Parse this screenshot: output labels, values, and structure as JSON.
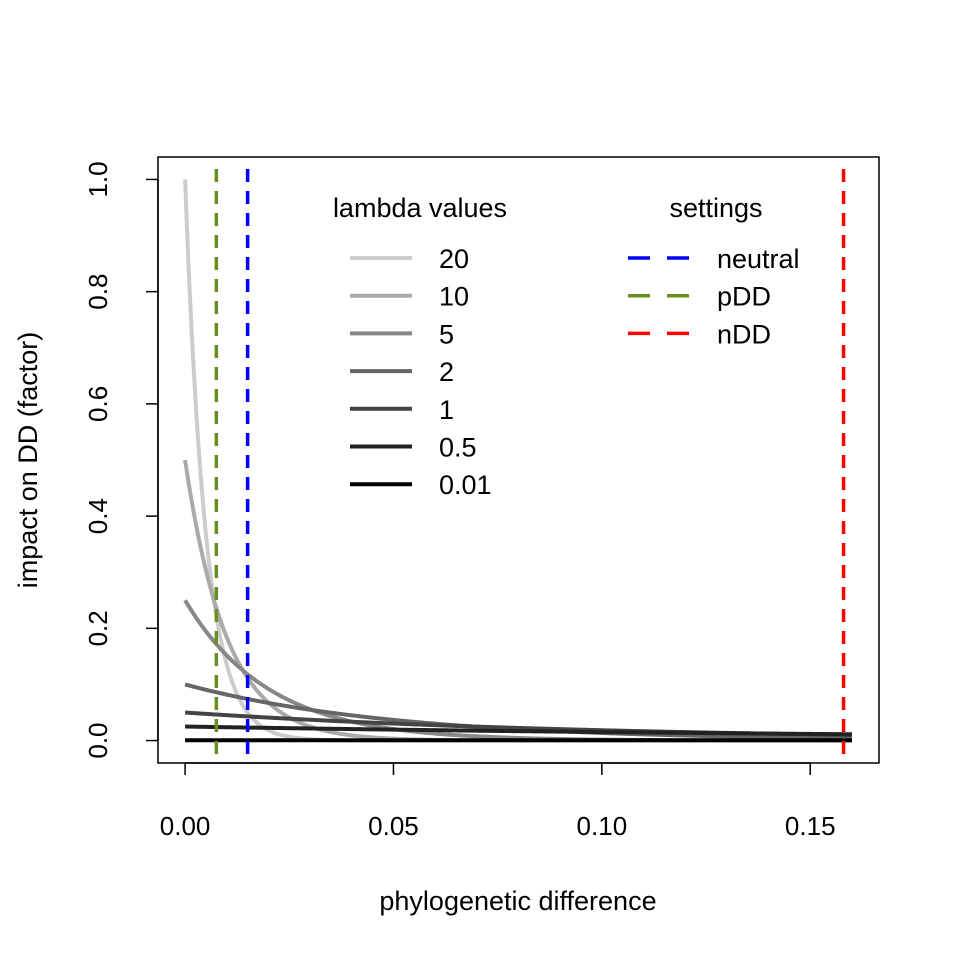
{
  "chart_data": {
    "type": "line",
    "title": "",
    "xlabel": "phylogenetic difference",
    "ylabel": "impact on DD (factor)",
    "xlim": [
      -0.0065,
      0.1665
    ],
    "ylim": [
      -0.04,
      1.04
    ],
    "xticks": [
      "0.00",
      "0.05",
      "0.10",
      "0.15"
    ],
    "xtick_values": [
      0,
      0.05,
      0.1,
      0.15
    ],
    "yticks": [
      "0.0",
      "0.2",
      "0.4",
      "0.6",
      "0.8",
      "1.0"
    ],
    "ytick_values": [
      0,
      0.2,
      0.4,
      0.6,
      0.8,
      1.0
    ],
    "grid": false,
    "x_range": [
      0,
      0.16
    ],
    "curve_formula": "y = lambda / 20 * exp(-lambda * 10 * x)",
    "series": [
      {
        "name": "20",
        "lambda": 20,
        "color": "#cccccc"
      },
      {
        "name": "10",
        "lambda": 10,
        "color": "#aaaaaa"
      },
      {
        "name": "5",
        "lambda": 5,
        "color": "#888888"
      },
      {
        "name": "2",
        "lambda": 2,
        "color": "#666666"
      },
      {
        "name": "1",
        "lambda": 1,
        "color": "#444444"
      },
      {
        "name": "0.5",
        "lambda": 0.5,
        "color": "#222222"
      },
      {
        "name": "0.01",
        "lambda": 0.01,
        "color": "#000000"
      }
    ],
    "vlines": [
      {
        "name": "neutral",
        "x": 0.015,
        "color": "#0000ff"
      },
      {
        "name": "pDD",
        "x": 0.0075,
        "color": "#6b8e23"
      },
      {
        "name": "nDD",
        "x": 0.158,
        "color": "#ff0000"
      }
    ],
    "legends": [
      {
        "title": "lambda values",
        "position": "top-center",
        "entries": [
          "20",
          "10",
          "5",
          "2",
          "1",
          "0.5",
          "0.01"
        ]
      },
      {
        "title": "settings",
        "position": "top-right",
        "entries": [
          "neutral",
          "pDD",
          "nDD"
        ]
      }
    ]
  }
}
